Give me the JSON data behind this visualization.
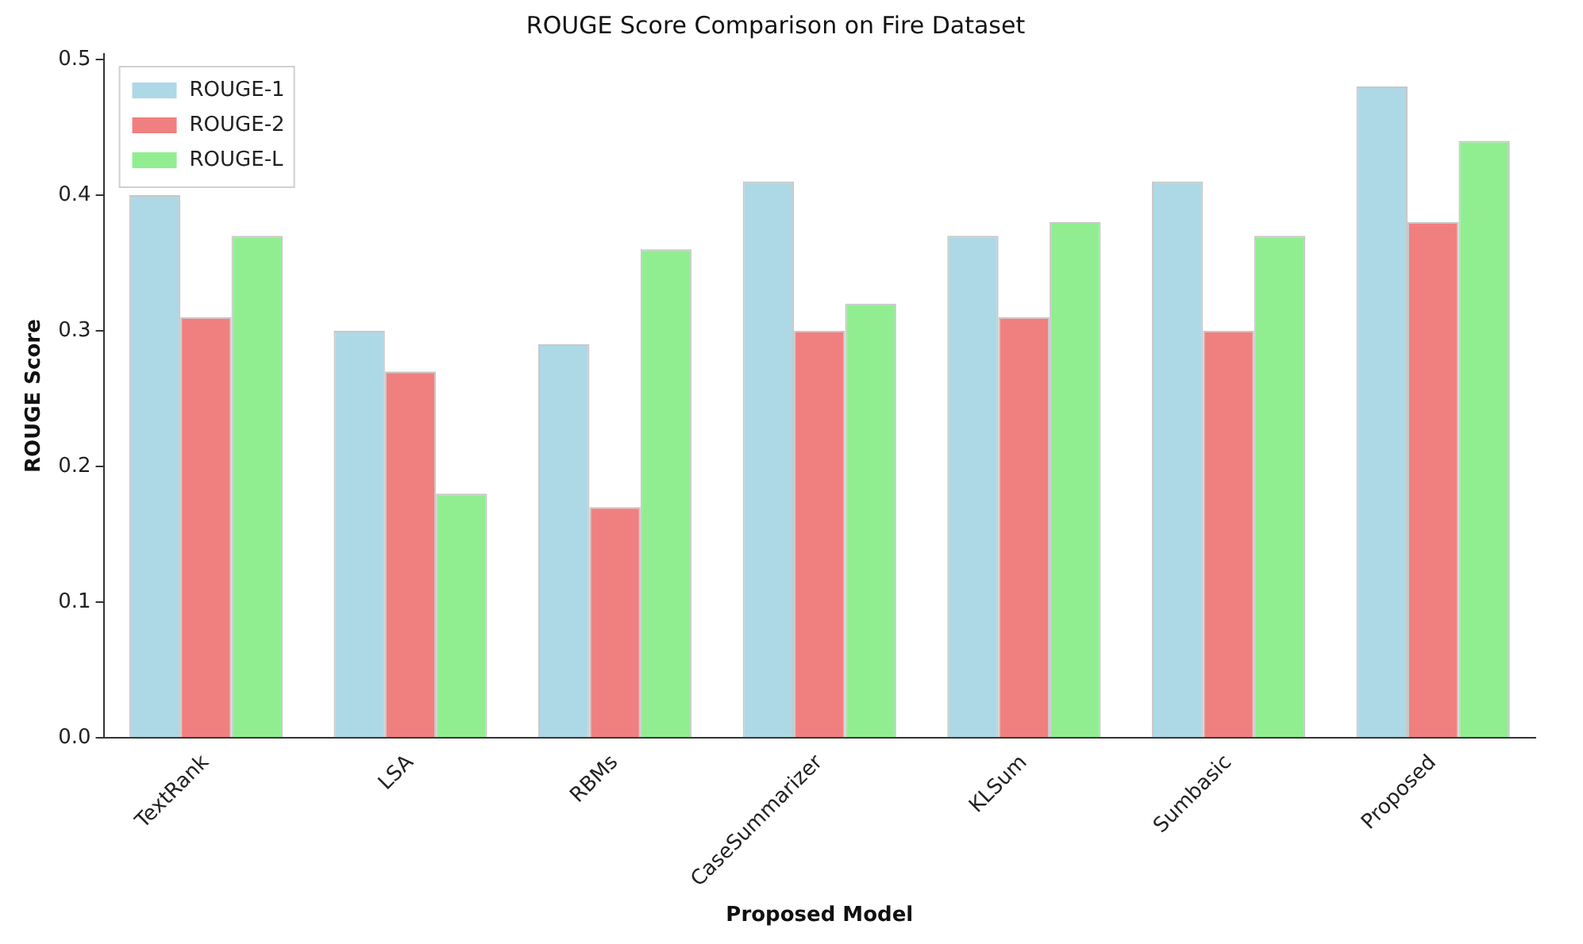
{
  "chart_data": {
    "type": "bar",
    "title": "ROUGE Score Comparison on Fire Dataset",
    "xlabel": "Proposed Model",
    "ylabel": "ROUGE Score",
    "categories": [
      "TextRank",
      "LSA",
      "RBMs",
      "CaseSummarizer",
      "KLSum",
      "Sumbasic",
      "Proposed"
    ],
    "series": [
      {
        "name": "ROUGE-1",
        "color": "#add8e6",
        "values": [
          0.4,
          0.3,
          0.29,
          0.41,
          0.37,
          0.41,
          0.48
        ]
      },
      {
        "name": "ROUGE-2",
        "color": "#f08080",
        "values": [
          0.31,
          0.27,
          0.17,
          0.3,
          0.31,
          0.3,
          0.38
        ]
      },
      {
        "name": "ROUGE-L",
        "color": "#90ee90",
        "values": [
          0.37,
          0.18,
          0.36,
          0.32,
          0.38,
          0.37,
          0.44
        ]
      }
    ],
    "ylim": [
      0,
      0.504
    ],
    "yticks": [
      {
        "value": 0,
        "label": "0.0"
      },
      {
        "value": 0.1,
        "label": "0.1"
      },
      {
        "value": 0.2,
        "label": "0.2"
      },
      {
        "value": 0.3,
        "label": "0.3"
      },
      {
        "value": 0.4,
        "label": "0.4"
      },
      {
        "value": 0.5,
        "label": "0.5"
      }
    ],
    "legend": "top left",
    "grid": false
  }
}
